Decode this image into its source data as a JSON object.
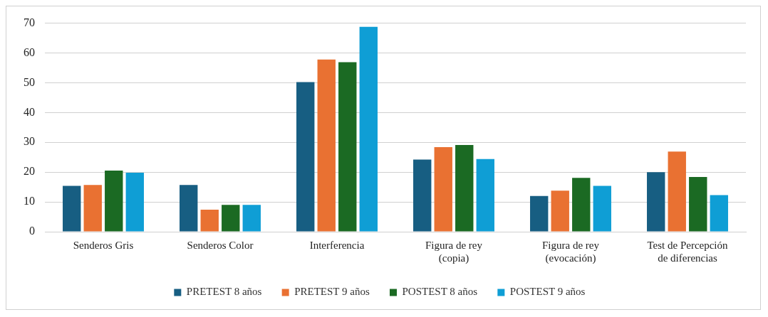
{
  "chart_data": {
    "type": "bar",
    "categories": [
      "Senderos Gris",
      "Senderos Color",
      "Interferencia",
      "Figura de rey (copia)",
      "Figura de rey (evocación)",
      "Test de Percepción de diferencias"
    ],
    "series": [
      {
        "name": "PRETEST 8 años",
        "color": "#175e82",
        "values": [
          15.4,
          15.7,
          50.2,
          24.2,
          12.0,
          20.0
        ]
      },
      {
        "name": "PRETEST 9 años",
        "color": "#e97132",
        "values": [
          15.7,
          7.4,
          57.8,
          28.4,
          13.8,
          26.9
        ]
      },
      {
        "name": "POSTEST 8 años",
        "color": "#1b6a23",
        "values": [
          20.5,
          9.0,
          56.9,
          29.1,
          18.1,
          18.4
        ]
      },
      {
        "name": "POSTEST 9 años",
        "color": "#0f9ed5",
        "values": [
          19.8,
          9.0,
          68.8,
          24.4,
          15.4,
          12.3
        ]
      }
    ],
    "ylim": [
      0,
      70
    ],
    "yticks": [
      0,
      10,
      20,
      30,
      40,
      50,
      60,
      70
    ],
    "grid": "y",
    "legend": "bottom"
  }
}
